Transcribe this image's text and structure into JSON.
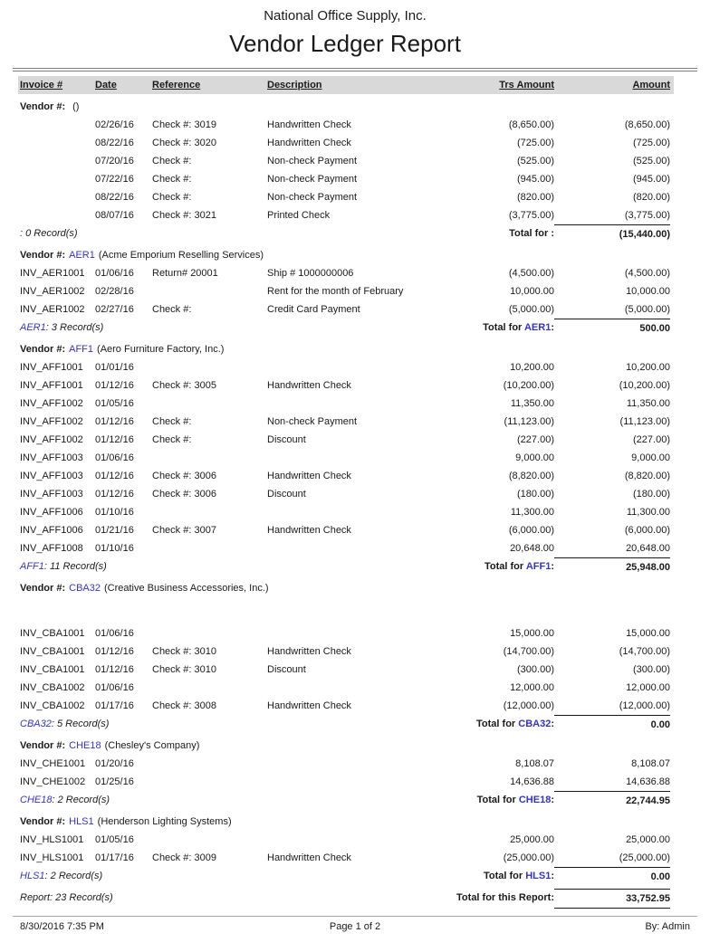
{
  "page": {
    "company": "National Office Supply, Inc.",
    "title": "Vendor Ledger Report"
  },
  "table": {
    "columns": [
      "Invoice #",
      "Date",
      "Reference",
      "Description",
      "Trs Amount",
      "Amount"
    ]
  },
  "colors": {
    "vendor_code_blue": "#3333cc",
    "column_header_bg": "#d9d9d9",
    "rule_gray": "#7f7f7f"
  },
  "sections": [
    {
      "label": "Vendor #:",
      "code": "",
      "name": "()",
      "gap_before_rows": false,
      "rows": [
        [
          "",
          "02/26/16",
          "Check #: 3019",
          "Handwritten Check",
          "(8,650.00)",
          "(8,650.00)"
        ],
        [
          "",
          "08/22/16",
          "Check #: 3020",
          "Handwritten Check",
          "(725.00)",
          "(725.00)"
        ],
        [
          "",
          "07/20/16",
          "Check #:",
          "Non-check Payment",
          "(525.00)",
          "(525.00)"
        ],
        [
          "",
          "07/22/16",
          "Check #:",
          "Non-check Payment",
          "(945.00)",
          "(945.00)"
        ],
        [
          "",
          "08/22/16",
          "Check #:",
          "Non-check Payment",
          "(820.00)",
          "(820.00)"
        ],
        [
          "",
          "08/07/16",
          "Check #: 3021",
          "Printed Check",
          "(3,775.00)",
          "(3,775.00)"
        ]
      ],
      "records_code": "",
      "records_rest": ": 0 Record(s)",
      "total_pre": "Total for ",
      "total_code": "",
      "total_post": ":",
      "total_amount": "(15,440.00)"
    },
    {
      "label": "Vendor #:",
      "code": "AER1",
      "name": "(Acme Emporium Reselling Services)",
      "gap_before_rows": false,
      "rows": [
        [
          "INV_AER1001",
          "01/06/16",
          "Return# 20001",
          "Ship # 1000000006",
          "(4,500.00)",
          "(4,500.00)"
        ],
        [
          "INV_AER1002",
          "02/28/16",
          "",
          "Rent for the month of February",
          "10,000.00",
          "10,000.00"
        ],
        [
          "INV_AER1002",
          "02/27/16",
          "Check #:",
          "Credit Card Payment",
          "(5,000.00)",
          "(5,000.00)"
        ]
      ],
      "records_code": "AER1",
      "records_rest": ": 3 Record(s)",
      "total_pre": "Total for ",
      "total_code": "AER1",
      "total_post": ":",
      "total_amount": "500.00"
    },
    {
      "label": "Vendor #:",
      "code": "AFF1",
      "name": "(Aero Furniture Factory, Inc.)",
      "gap_before_rows": false,
      "rows": [
        [
          "INV_AFF1001",
          "01/01/16",
          "",
          "",
          "10,200.00",
          "10,200.00"
        ],
        [
          "INV_AFF1001",
          "01/12/16",
          "Check #: 3005",
          "Handwritten Check",
          "(10,200.00)",
          "(10,200.00)"
        ],
        [
          "INV_AFF1002",
          "01/05/16",
          "",
          "",
          "11,350.00",
          "11,350.00"
        ],
        [
          "INV_AFF1002",
          "01/12/16",
          "Check #:",
          "Non-check Payment",
          "(11,123.00)",
          "(11,123.00)"
        ],
        [
          "INV_AFF1002",
          "01/12/16",
          "Check #:",
          "Discount",
          "(227.00)",
          "(227.00)"
        ],
        [
          "INV_AFF1003",
          "01/06/16",
          "",
          "",
          "9,000.00",
          "9,000.00"
        ],
        [
          "INV_AFF1003",
          "01/12/16",
          "Check #: 3006",
          "Handwritten Check",
          "(8,820.00)",
          "(8,820.00)"
        ],
        [
          "INV_AFF1003",
          "01/12/16",
          "Check #: 3006",
          "Discount",
          "(180.00)",
          "(180.00)"
        ],
        [
          "INV_AFF1006",
          "01/10/16",
          "",
          "",
          "11,300.00",
          "11,300.00"
        ],
        [
          "INV_AFF1006",
          "01/21/16",
          "Check #: 3007",
          "Handwritten Check",
          "(6,000.00)",
          "(6,000.00)"
        ],
        [
          "INV_AFF1008",
          "01/10/16",
          "",
          "",
          "20,648.00",
          "20,648.00"
        ]
      ],
      "records_code": "AFF1",
      "records_rest": ": 11 Record(s)",
      "total_pre": "Total for ",
      "total_code": "AFF1",
      "total_post": ":",
      "total_amount": "25,948.00"
    },
    {
      "label": "Vendor #:",
      "code": "CBA32",
      "name": "(Creative Business Accessories, Inc.)",
      "gap_before_rows": true,
      "rows": [
        [
          "INV_CBA1001",
          "01/06/16",
          "",
          "",
          "15,000.00",
          "15,000.00"
        ],
        [
          "INV_CBA1001",
          "01/12/16",
          "Check #: 3010",
          "Handwritten Check",
          "(14,700.00)",
          "(14,700.00)"
        ],
        [
          "INV_CBA1001",
          "01/12/16",
          "Check #: 3010",
          "Discount",
          "(300.00)",
          "(300.00)"
        ],
        [
          "INV_CBA1002",
          "01/06/16",
          "",
          "",
          "12,000.00",
          "12,000.00"
        ],
        [
          "INV_CBA1002",
          "01/17/16",
          "Check #: 3008",
          "Handwritten Check",
          "(12,000.00)",
          "(12,000.00)"
        ]
      ],
      "records_code": "CBA32",
      "records_rest": ": 5 Record(s)",
      "total_pre": "Total for ",
      "total_code": "CBA32",
      "total_post": ":",
      "total_amount": "0.00"
    },
    {
      "label": "Vendor #:",
      "code": "CHE18",
      "name": "(Chesley's Company)",
      "gap_before_rows": false,
      "rows": [
        [
          "INV_CHE1001",
          "01/20/16",
          "",
          "",
          "8,108.07",
          "8,108.07"
        ],
        [
          "INV_CHE1002",
          "01/25/16",
          "",
          "",
          "14,636.88",
          "14,636.88"
        ]
      ],
      "records_code": "CHE18",
      "records_rest": ": 2 Record(s)",
      "total_pre": "Total for ",
      "total_code": "CHE18",
      "total_post": ":",
      "total_amount": "22,744.95"
    },
    {
      "label": "Vendor #:",
      "code": "HLS1",
      "name": "(Henderson Lighting Systems)",
      "gap_before_rows": false,
      "rows": [
        [
          "INV_HLS1001",
          "01/05/16",
          "",
          "",
          "25,000.00",
          "25,000.00"
        ],
        [
          "INV_HLS1001",
          "01/17/16",
          "Check #: 3009",
          "Handwritten Check",
          "(25,000.00)",
          "(25,000.00)"
        ]
      ],
      "records_code": "HLS1",
      "records_rest": ": 2 Record(s)",
      "total_pre": "Total for ",
      "total_code": "HLS1",
      "total_post": ":",
      "total_amount": "0.00"
    }
  ],
  "report_summary": {
    "records": "Report: 23 Record(s)",
    "total_label": "Total for this Report:",
    "total_amount": "33,752.95"
  },
  "footer": {
    "timestamp": "8/30/2016 7:35 PM",
    "page": "Page 1 of 2",
    "by": "By: Admin"
  }
}
